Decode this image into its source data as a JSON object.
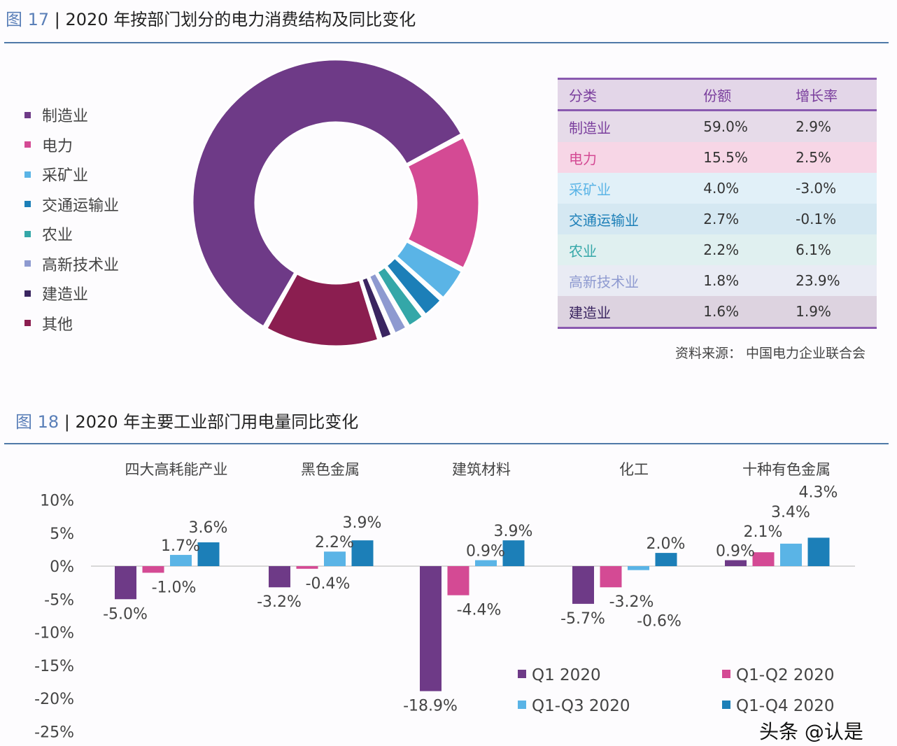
{
  "chart_data": [
    {
      "type": "pie",
      "variant": "donut",
      "fig_label": "图 17",
      "title": "2020 年按部门划分的电力消费结构及同比变化",
      "slices": [
        {
          "name": "制造业",
          "share": 59.0,
          "growth": "2.9%",
          "color": "#6e3a87",
          "row_bg": "#e6dbe9",
          "text_color": "#7a3e9d"
        },
        {
          "name": "电力",
          "share": 15.5,
          "growth": "2.5%",
          "color": "#d44a94",
          "row_bg": "#f7d6e6",
          "text_color": "#d44a94"
        },
        {
          "name": "采矿业",
          "share": 4.0,
          "growth": "-3.0%",
          "color": "#5ab4e6",
          "row_bg": "#e1f0f8",
          "text_color": "#5ab4e6"
        },
        {
          "name": "交通运输业",
          "share": 2.7,
          "growth": "-0.1%",
          "color": "#1c7fb8",
          "row_bg": "#d5e8f2",
          "text_color": "#1c7fb8"
        },
        {
          "name": "农业",
          "share": 2.2,
          "growth": "6.1%",
          "color": "#34a7a8",
          "row_bg": "#e0f0f0",
          "text_color": "#34a7a8"
        },
        {
          "name": "高新技术业",
          "share": 1.8,
          "growth": "23.9%",
          "color": "#8e9ad0",
          "row_bg": "#e9ebf4",
          "text_color": "#8e9ad0"
        },
        {
          "name": "建造业",
          "share": 1.6,
          "growth": "1.9%",
          "color": "#3a2560",
          "row_bg": "#ddd3e0",
          "text_color": "#3a2560"
        },
        {
          "name": "其他",
          "share": 13.2,
          "color": "#8b1e50"
        }
      ],
      "table": {
        "headers": [
          "分类",
          "份额",
          "增长率"
        ],
        "rows": 7
      },
      "source": "资料来源：  中国电力企业联合会"
    },
    {
      "type": "bar",
      "fig_label": "图 18",
      "title": "2020 年主要工业部门用电量同比变化",
      "categories": [
        "四大高耗能产业",
        "黑色金属",
        "建筑材料",
        "化工",
        "十种有色金属"
      ],
      "series": [
        {
          "name": "Q1 2020",
          "color": "#6e3a87",
          "values": [
            -5.0,
            -3.2,
            -18.9,
            -5.7,
            0.9
          ],
          "labels": [
            "-5.0%",
            "-3.2%",
            "-18.9%",
            "-5.7%",
            "0.9%"
          ]
        },
        {
          "name": "Q1-Q2 2020",
          "color": "#d44a94",
          "values": [
            -1.0,
            -0.4,
            -4.4,
            -3.2,
            2.1
          ],
          "labels": [
            "-1.0%",
            "-0.4%",
            "-4.4%",
            "-3.2%",
            "2.1%"
          ]
        },
        {
          "name": "Q1-Q3 2020",
          "color": "#5ab4e6",
          "values": [
            1.7,
            2.2,
            0.9,
            -0.6,
            3.4
          ],
          "labels": [
            "1.7%",
            "2.2%",
            "0.9%",
            "-0.6%",
            "3.4%"
          ]
        },
        {
          "name": "Q1-Q4 2020",
          "color": "#1c7fb8",
          "values": [
            3.6,
            3.9,
            3.9,
            2.0,
            4.3
          ],
          "labels": [
            "3.6%",
            "3.9%",
            "3.9%",
            "2.0%",
            "4.3%"
          ]
        }
      ],
      "ylim": [
        -25,
        10
      ],
      "yticks": [
        "10%",
        "5%",
        "0%",
        "-5%",
        "-10%",
        "-15%",
        "-20%",
        "-25%"
      ],
      "legend": "bottom-right"
    }
  ],
  "watermark": "头条 @认是"
}
